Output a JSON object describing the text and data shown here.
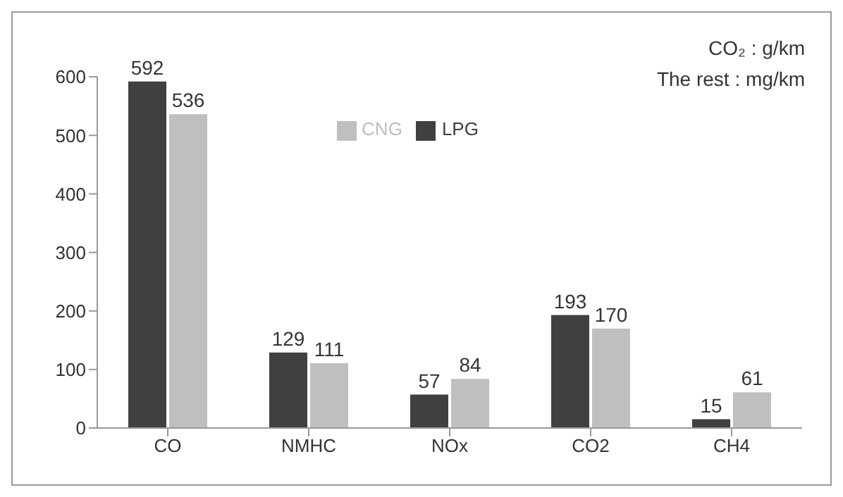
{
  "chart_data": {
    "type": "bar",
    "categories": [
      "CO",
      "NMHC",
      "NOx",
      "CO2",
      "CH4"
    ],
    "series": [
      {
        "name": "LPG",
        "color": "#404040",
        "values": [
          592,
          129,
          57,
          193,
          15
        ]
      },
      {
        "name": "CNG",
        "color": "#bfbfbf",
        "values": [
          536,
          111,
          84,
          170,
          61
        ]
      }
    ],
    "ylim": [
      0,
      600
    ],
    "yticks": [
      0,
      100,
      200,
      300,
      400,
      500,
      600
    ],
    "legend": "top",
    "data_labels": true,
    "grid": false,
    "annotations": [
      "CO₂ : g/km",
      "The rest : mg/km"
    ]
  }
}
